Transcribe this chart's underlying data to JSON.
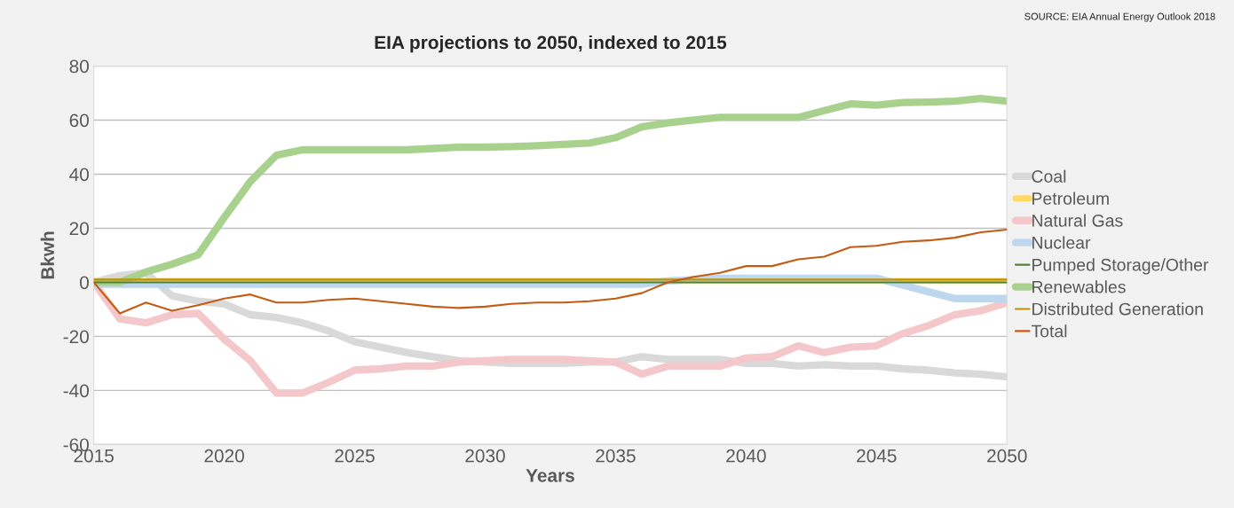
{
  "chart_data": {
    "type": "line",
    "title": "EIA projections to 2050, indexed to 2015",
    "xlabel": "Years",
    "ylabel": "Bkwh",
    "annotations": [
      "SOURCE: EIA Annual Energy Outlook 2018"
    ],
    "x": [
      2015,
      2016,
      2017,
      2018,
      2019,
      2020,
      2021,
      2022,
      2023,
      2024,
      2025,
      2026,
      2027,
      2028,
      2029,
      2030,
      2031,
      2032,
      2033,
      2034,
      2035,
      2036,
      2037,
      2038,
      2039,
      2040,
      2041,
      2042,
      2043,
      2044,
      2045,
      2046,
      2047,
      2048,
      2049,
      2050
    ],
    "xlim": [
      2015,
      2050
    ],
    "xticks": [
      2015,
      2020,
      2025,
      2030,
      2035,
      2040,
      2045,
      2050
    ],
    "ylim": [
      -60,
      80
    ],
    "yticks": [
      -60,
      -40,
      -20,
      0,
      20,
      40,
      60,
      80
    ],
    "grid": "y",
    "legend": "right",
    "marker": "none",
    "line_style": "solid",
    "series": [
      {
        "name": "Coal",
        "color": "#d9d9d9",
        "values": [
          0,
          2.5,
          3.5,
          -5,
          -7,
          -8,
          -12,
          -13,
          -15,
          -18,
          -22,
          -24,
          -26,
          -27.5,
          -29,
          -29.5,
          -30,
          -30,
          -30,
          -29.5,
          -29.5,
          -27.5,
          -28.5,
          -28.5,
          -28.5,
          -30,
          -30,
          -31,
          -30.5,
          -31,
          -31,
          -32,
          -32.5,
          -33.5,
          -34,
          -35
        ]
      },
      {
        "name": "Petroleum",
        "color": "#ffd966",
        "values": [
          0.5,
          0.5,
          0.5,
          0.5,
          0.5,
          0.5,
          0.5,
          0.5,
          0.5,
          0.5,
          0.5,
          0.5,
          0.5,
          0.5,
          0.5,
          0.5,
          0.5,
          0.5,
          0.5,
          0.5,
          0.5,
          0.5,
          0.5,
          0.5,
          0.5,
          0.5,
          0.5,
          0.5,
          0.5,
          0.5,
          0.5,
          0.5,
          0.5,
          0.5,
          0.5,
          0.5
        ]
      },
      {
        "name": "Natural Gas",
        "color": "#f4c7cb",
        "values": [
          0,
          -13.5,
          -15,
          -12,
          -11.5,
          -21,
          -29,
          -41,
          -41,
          -37,
          -32.5,
          -32,
          -31,
          -31,
          -29.5,
          -29,
          -28.5,
          -28.5,
          -28.5,
          -29,
          -29.5,
          -34,
          -31,
          -31,
          -31,
          -28,
          -27.5,
          -23.5,
          -26,
          -24,
          -23.5,
          -19,
          -16,
          -12,
          -10.5,
          -7.5
        ]
      },
      {
        "name": "Nuclear",
        "color": "#bdd7ee",
        "values": [
          -0.7,
          -0.7,
          -0.7,
          -0.7,
          -0.7,
          -0.7,
          -0.7,
          -0.7,
          -0.7,
          -0.7,
          -0.7,
          -0.7,
          -0.7,
          -0.7,
          -0.7,
          -0.7,
          -0.7,
          -0.7,
          -0.7,
          -0.7,
          -0.7,
          -0.7,
          0.5,
          1,
          1.5,
          1.5,
          1.5,
          1.5,
          1.5,
          1.5,
          1.5,
          -1,
          -3.5,
          -6,
          -6,
          -6
        ]
      },
      {
        "name": "Pumped Storage/Other",
        "color": "#548235",
        "values": [
          0,
          0,
          0,
          0,
          0,
          0,
          0,
          0,
          0,
          0,
          0,
          0,
          0,
          0,
          0,
          0,
          0,
          0,
          0,
          0,
          0,
          0,
          0,
          0,
          0,
          0,
          0,
          0,
          0,
          0,
          0,
          0,
          0,
          0,
          0,
          0
        ]
      },
      {
        "name": "Renewables",
        "color": "#a9d18e",
        "values": [
          0,
          0,
          3.8,
          6.7,
          10.2,
          24,
          37.3,
          47,
          49,
          49,
          49,
          49,
          49,
          49.5,
          50,
          50,
          50.2,
          50.5,
          51,
          51.5,
          53.5,
          57.5,
          59,
          60,
          61,
          61,
          61,
          61,
          63.5,
          66,
          65.5,
          66.5,
          66.7,
          67,
          68,
          67
        ]
      },
      {
        "name": "Distributed Generation",
        "color": "#bf9000",
        "values": [
          1,
          1,
          1,
          1,
          1,
          1,
          1,
          1,
          1,
          1,
          1,
          1,
          1,
          1,
          1,
          1,
          1,
          1,
          1,
          1,
          1,
          1,
          1,
          1,
          1,
          1,
          1,
          1,
          1,
          1,
          1,
          1,
          1,
          1,
          1,
          1
        ]
      },
      {
        "name": "Total",
        "color": "#c55a11",
        "values": [
          0,
          -11.5,
          -7.5,
          -10.5,
          -8.5,
          -6,
          -4.5,
          -7.5,
          -7.5,
          -6.5,
          -6,
          -7,
          -8,
          -9,
          -9.5,
          -9,
          -8,
          -7.5,
          -7.5,
          -7,
          -6,
          -4,
          0,
          2,
          3.5,
          6,
          6,
          8.5,
          9.5,
          13,
          13.5,
          15,
          15.5,
          16.5,
          18.5,
          19.5
        ]
      }
    ]
  }
}
